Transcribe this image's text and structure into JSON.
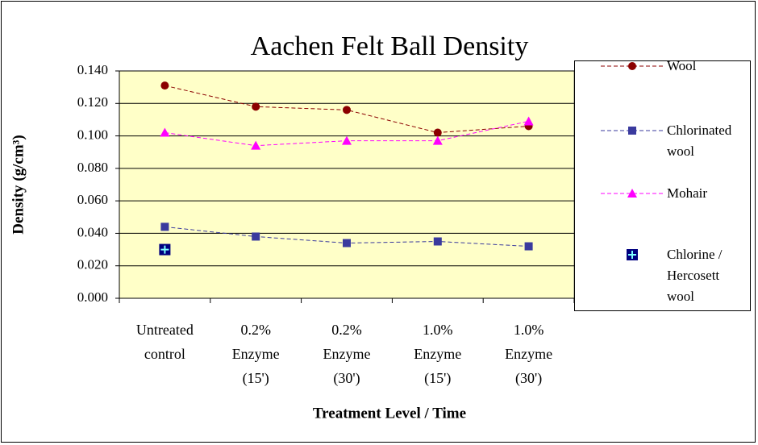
{
  "chart_data": {
    "type": "line",
    "title": "Aachen Felt Ball Density",
    "x_label": "Treatment Level / Time",
    "y_label": "Density (g/cm³)",
    "categories": [
      "Untreated control",
      "0.2% Enzyme (15')",
      "0.2% Enzyme (30')",
      "1.0% Enzyme (15')",
      "1.0% Enzyme (30')"
    ],
    "ylim": [
      0,
      0.14
    ],
    "yticks": [
      {
        "value": 0,
        "label": "0.000"
      },
      {
        "value": 0.02,
        "label": "0.020"
      },
      {
        "value": 0.04,
        "label": "0.040"
      },
      {
        "value": 0.06,
        "label": "0.060"
      },
      {
        "value": 0.08,
        "label": "0.080"
      },
      {
        "value": 0.1,
        "label": "0.100"
      },
      {
        "value": 0.12,
        "label": "0.120"
      },
      {
        "value": 0.14,
        "label": "0.140"
      }
    ],
    "grid": true,
    "legend": "right",
    "series": [
      {
        "name": "Wool",
        "color": "#8b0000",
        "marker": "circle",
        "line": true,
        "values": [
          0.131,
          0.118,
          0.116,
          0.102,
          0.106
        ]
      },
      {
        "name": "Chlorinated wool",
        "color": "#3a3a9e",
        "marker": "square",
        "line": true,
        "values": [
          0.044,
          0.038,
          0.034,
          0.035,
          0.032
        ]
      },
      {
        "name": "Mohair",
        "color": "#ff00ff",
        "marker": "triangle",
        "line": true,
        "values": [
          0.102,
          0.094,
          0.097,
          0.097,
          0.109
        ]
      },
      {
        "name": "Chlorine / Hercosett wool",
        "color": "#000080",
        "marker": "plus-square",
        "line": false,
        "values": [
          0.03,
          null,
          null,
          null,
          null
        ]
      }
    ]
  }
}
